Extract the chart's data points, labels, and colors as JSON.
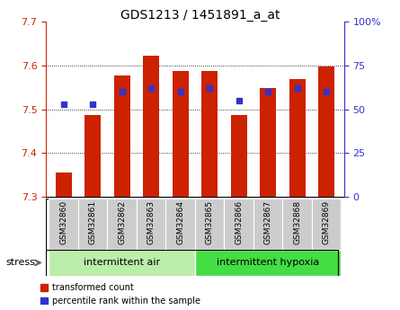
{
  "title": "GDS1213 / 1451891_a_at",
  "samples": [
    "GSM32860",
    "GSM32861",
    "GSM32862",
    "GSM32863",
    "GSM32864",
    "GSM32865",
    "GSM32866",
    "GSM32867",
    "GSM32868",
    "GSM32869"
  ],
  "bar_values": [
    7.355,
    7.487,
    7.578,
    7.622,
    7.587,
    7.587,
    7.487,
    7.548,
    7.568,
    7.597
  ],
  "percentile_values": [
    53,
    53,
    60,
    62,
    60,
    62,
    55,
    60,
    62,
    60
  ],
  "ymin": 7.3,
  "ymax": 7.7,
  "yticks": [
    7.3,
    7.4,
    7.5,
    7.6,
    7.7
  ],
  "right_yticks": [
    0,
    25,
    50,
    75,
    100
  ],
  "right_ylabels": [
    "0",
    "25",
    "50",
    "75",
    "100%"
  ],
  "bar_color": "#cc2200",
  "dot_color": "#3333cc",
  "groups": [
    {
      "label": "intermittent air",
      "start": 0,
      "end": 5,
      "color": "#bbeeaa"
    },
    {
      "label": "intermittent hypoxia",
      "start": 5,
      "end": 10,
      "color": "#44dd44"
    }
  ],
  "stress_label": "stress",
  "tick_bg_color": "#cccccc",
  "legend": [
    {
      "color": "#cc2200",
      "label": "transformed count"
    },
    {
      "color": "#3333cc",
      "label": "percentile rank within the sample"
    }
  ]
}
